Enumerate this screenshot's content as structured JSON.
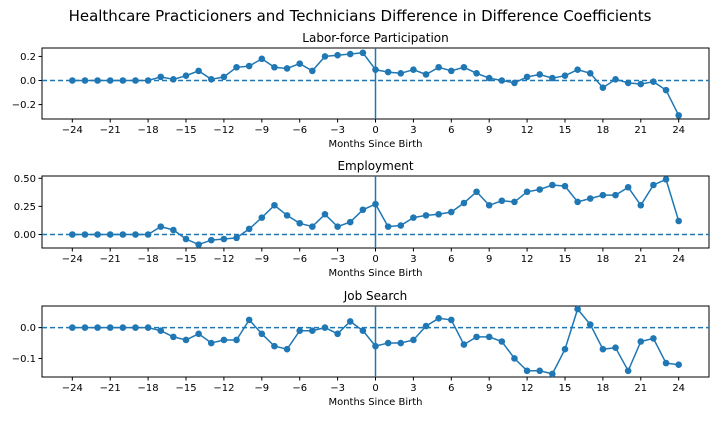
{
  "figure": {
    "title": "Healthcare Practicioners and Technicians Difference in Difference Coefficients"
  },
  "chart_data": [
    {
      "type": "line",
      "title": "Labor-force Participation",
      "xlabel": "Months Since Birth",
      "ylabel": "",
      "x": [
        -24,
        -23,
        -22,
        -21,
        -20,
        -19,
        -18,
        -17,
        -16,
        -15,
        -14,
        -13,
        -12,
        -11,
        -10,
        -9,
        -8,
        -7,
        -6,
        -5,
        -4,
        -3,
        -2,
        -1,
        0,
        1,
        2,
        3,
        4,
        5,
        6,
        7,
        8,
        9,
        10,
        11,
        12,
        13,
        14,
        15,
        16,
        17,
        18,
        19,
        20,
        21,
        22,
        23,
        24
      ],
      "values": [
        0.0,
        0.0,
        0.0,
        0.0,
        0.0,
        0.0,
        0.0,
        0.03,
        0.01,
        0.04,
        0.08,
        0.01,
        0.03,
        0.11,
        0.12,
        0.18,
        0.11,
        0.1,
        0.14,
        0.08,
        0.2,
        0.21,
        0.22,
        0.23,
        0.09,
        0.07,
        0.06,
        0.09,
        0.05,
        0.11,
        0.08,
        0.11,
        0.06,
        0.02,
        0.0,
        -0.02,
        0.03,
        0.05,
        0.02,
        0.04,
        0.09,
        0.06,
        -0.06,
        0.01,
        -0.02,
        -0.03,
        -0.01,
        -0.08,
        -0.29
      ],
      "xticks": [
        -24,
        -21,
        -18,
        -15,
        -12,
        -9,
        -6,
        -3,
        0,
        3,
        6,
        9,
        12,
        15,
        18,
        21,
        24
      ],
      "yticks": [
        -0.2,
        0.0,
        0.2
      ],
      "ytick_labels": [
        "−0.2",
        "0.0",
        "0.2"
      ],
      "xlim": [
        -26.4,
        26.4
      ],
      "ylim": [
        -0.32,
        0.27
      ],
      "hline": 0,
      "vline": 0,
      "color": "#1f77b4"
    },
    {
      "type": "line",
      "title": "Employment",
      "xlabel": "Months Since Birth",
      "ylabel": "",
      "x": [
        -24,
        -23,
        -22,
        -21,
        -20,
        -19,
        -18,
        -17,
        -16,
        -15,
        -14,
        -13,
        -12,
        -11,
        -10,
        -9,
        -8,
        -7,
        -6,
        -5,
        -4,
        -3,
        -2,
        -1,
        0,
        1,
        2,
        3,
        4,
        5,
        6,
        7,
        8,
        9,
        10,
        11,
        12,
        13,
        14,
        15,
        16,
        17,
        18,
        19,
        20,
        21,
        22,
        23,
        24
      ],
      "values": [
        0.0,
        0.0,
        0.0,
        0.0,
        0.0,
        0.0,
        0.0,
        0.07,
        0.04,
        -0.04,
        -0.09,
        -0.05,
        -0.04,
        -0.03,
        0.05,
        0.15,
        0.26,
        0.17,
        0.1,
        0.07,
        0.18,
        0.07,
        0.11,
        0.22,
        0.27,
        0.07,
        0.08,
        0.15,
        0.17,
        0.18,
        0.2,
        0.28,
        0.38,
        0.26,
        0.3,
        0.29,
        0.38,
        0.4,
        0.44,
        0.43,
        0.29,
        0.32,
        0.35,
        0.35,
        0.42,
        0.26,
        0.44,
        0.49,
        0.12
      ],
      "xticks": [
        -24,
        -21,
        -18,
        -15,
        -12,
        -9,
        -6,
        -3,
        0,
        3,
        6,
        9,
        12,
        15,
        18,
        21,
        24
      ],
      "yticks": [
        0.0,
        0.25,
        0.5
      ],
      "ytick_labels": [
        "0.00",
        "0.25",
        "0.50"
      ],
      "xlim": [
        -26.4,
        26.4
      ],
      "ylim": [
        -0.12,
        0.52
      ],
      "hline": 0,
      "vline": 0,
      "color": "#1f77b4"
    },
    {
      "type": "line",
      "title": "Job Search",
      "xlabel": "Months Since Birth",
      "ylabel": "",
      "x": [
        -24,
        -23,
        -22,
        -21,
        -20,
        -19,
        -18,
        -17,
        -16,
        -15,
        -14,
        -13,
        -12,
        -11,
        -10,
        -9,
        -8,
        -7,
        -6,
        -5,
        -4,
        -3,
        -2,
        -1,
        0,
        1,
        2,
        3,
        4,
        5,
        6,
        7,
        8,
        9,
        10,
        11,
        12,
        13,
        14,
        15,
        16,
        17,
        18,
        19,
        20,
        21,
        22,
        23,
        24
      ],
      "values": [
        0.0,
        0.0,
        0.0,
        0.0,
        0.0,
        0.0,
        0.0,
        -0.01,
        -0.03,
        -0.04,
        -0.02,
        -0.05,
        -0.04,
        -0.04,
        0.025,
        -0.02,
        -0.06,
        -0.07,
        -0.01,
        -0.01,
        0.0,
        -0.02,
        0.02,
        -0.01,
        -0.06,
        -0.05,
        -0.05,
        -0.04,
        0.005,
        0.03,
        0.025,
        -0.055,
        -0.03,
        -0.03,
        -0.045,
        -0.1,
        -0.14,
        -0.14,
        -0.15,
        -0.07,
        0.06,
        0.01,
        -0.07,
        -0.065,
        -0.14,
        -0.045,
        -0.035,
        -0.115,
        -0.12
      ],
      "xticks": [
        -24,
        -21,
        -18,
        -15,
        -12,
        -9,
        -6,
        -3,
        0,
        3,
        6,
        9,
        12,
        15,
        18,
        21,
        24
      ],
      "yticks": [
        -0.1,
        0.0
      ],
      "ytick_labels": [
        "−0.1",
        "0.0"
      ],
      "xlim": [
        -26.4,
        26.4
      ],
      "ylim": [
        -0.16,
        0.07
      ],
      "hline": 0,
      "vline": 0,
      "color": "#1f77b4"
    }
  ]
}
